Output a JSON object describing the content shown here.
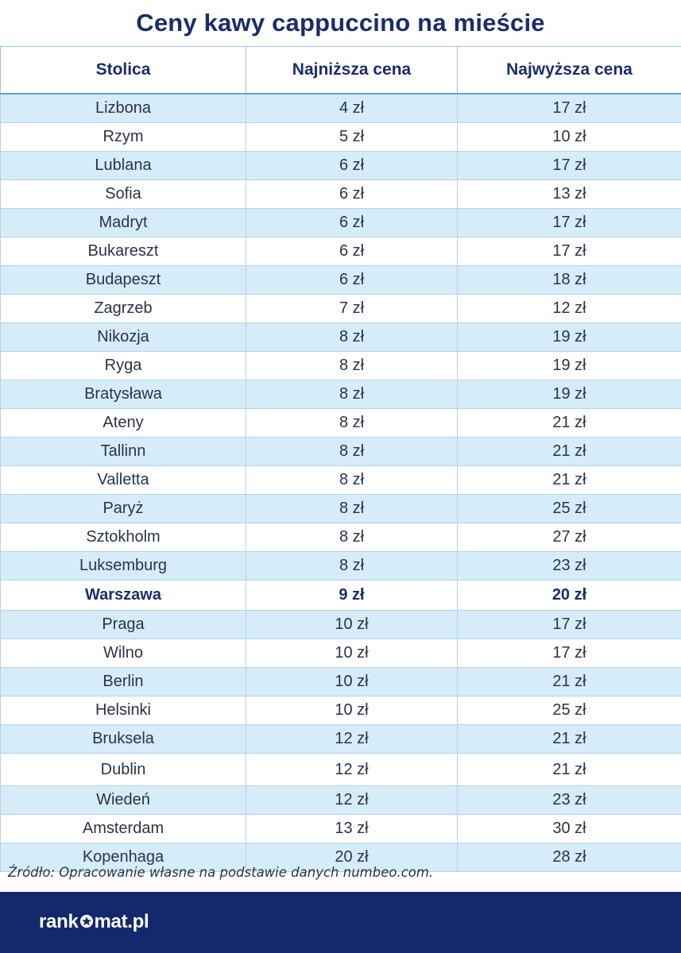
{
  "title": "Ceny kawy cappuccino na mieście",
  "chart_data": {
    "type": "table",
    "title": "Ceny kawy cappuccino na mieście",
    "columns": [
      "Stolica",
      "Najniższa cena",
      "Najwyższa cena"
    ],
    "rows": [
      {
        "city": "Lizbona",
        "min": "4 zł",
        "max": "17 zł"
      },
      {
        "city": "Rzym",
        "min": "5 zł",
        "max": "10 zł"
      },
      {
        "city": "Lublana",
        "min": "6 zł",
        "max": "17 zł"
      },
      {
        "city": "Sofia",
        "min": "6 zł",
        "max": "13 zł"
      },
      {
        "city": "Madryt",
        "min": "6 zł",
        "max": "17 zł"
      },
      {
        "city": "Bukareszt",
        "min": "6 zł",
        "max": "17 zł"
      },
      {
        "city": "Budapeszt",
        "min": "6 zł",
        "max": "18 zł"
      },
      {
        "city": "Zagrzeb",
        "min": "7 zł",
        "max": "12 zł"
      },
      {
        "city": "Nikozja",
        "min": "8 zł",
        "max": "19 zł"
      },
      {
        "city": "Ryga",
        "min": "8 zł",
        "max": "19 zł"
      },
      {
        "city": "Bratysława",
        "min": "8 zł",
        "max": "19 zł"
      },
      {
        "city": "Ateny",
        "min": "8 zł",
        "max": "21 zł"
      },
      {
        "city": "Tallinn",
        "min": "8 zł",
        "max": "21 zł"
      },
      {
        "city": "Valletta",
        "min": "8 zł",
        "max": "21 zł"
      },
      {
        "city": "Paryż",
        "min": "8 zł",
        "max": "25 zł"
      },
      {
        "city": "Sztokholm",
        "min": "8 zł",
        "max": "27 zł"
      },
      {
        "city": "Luksemburg",
        "min": "8 zł",
        "max": "23 zł"
      },
      {
        "city": "Warszawa",
        "min": "9 zł",
        "max": "20 zł",
        "highlight": true
      },
      {
        "city": "Praga",
        "min": "10 zł",
        "max": "17 zł"
      },
      {
        "city": "Wilno",
        "min": "10 zł",
        "max": "17 zł"
      },
      {
        "city": "Berlin",
        "min": "10 zł",
        "max": "21 zł"
      },
      {
        "city": "Helsinki",
        "min": "10 zł",
        "max": "25 zł"
      },
      {
        "city": "Bruksela",
        "min": "12 zł",
        "max": "21 zł"
      },
      {
        "city": "Dublin",
        "min": "12 zł",
        "max": "21 zł"
      },
      {
        "city": "Wiedeń",
        "min": "12 zł",
        "max": "23 zł"
      },
      {
        "city": "Amsterdam",
        "min": "13 zł",
        "max": "30 zł"
      },
      {
        "city": "Kopenhaga",
        "min": "20 zł",
        "max": "28 zł"
      }
    ]
  },
  "source": "Źródło: Opracowanie własne na podstawie danych numbeo.com.",
  "footer": {
    "brand_left": "rank",
    "brand_right": "mat.pl",
    "brand_icon": "star-icon"
  },
  "colors": {
    "title": "#1a2d6b",
    "stripe": "#d6ecf8",
    "footer": "#14296b"
  }
}
